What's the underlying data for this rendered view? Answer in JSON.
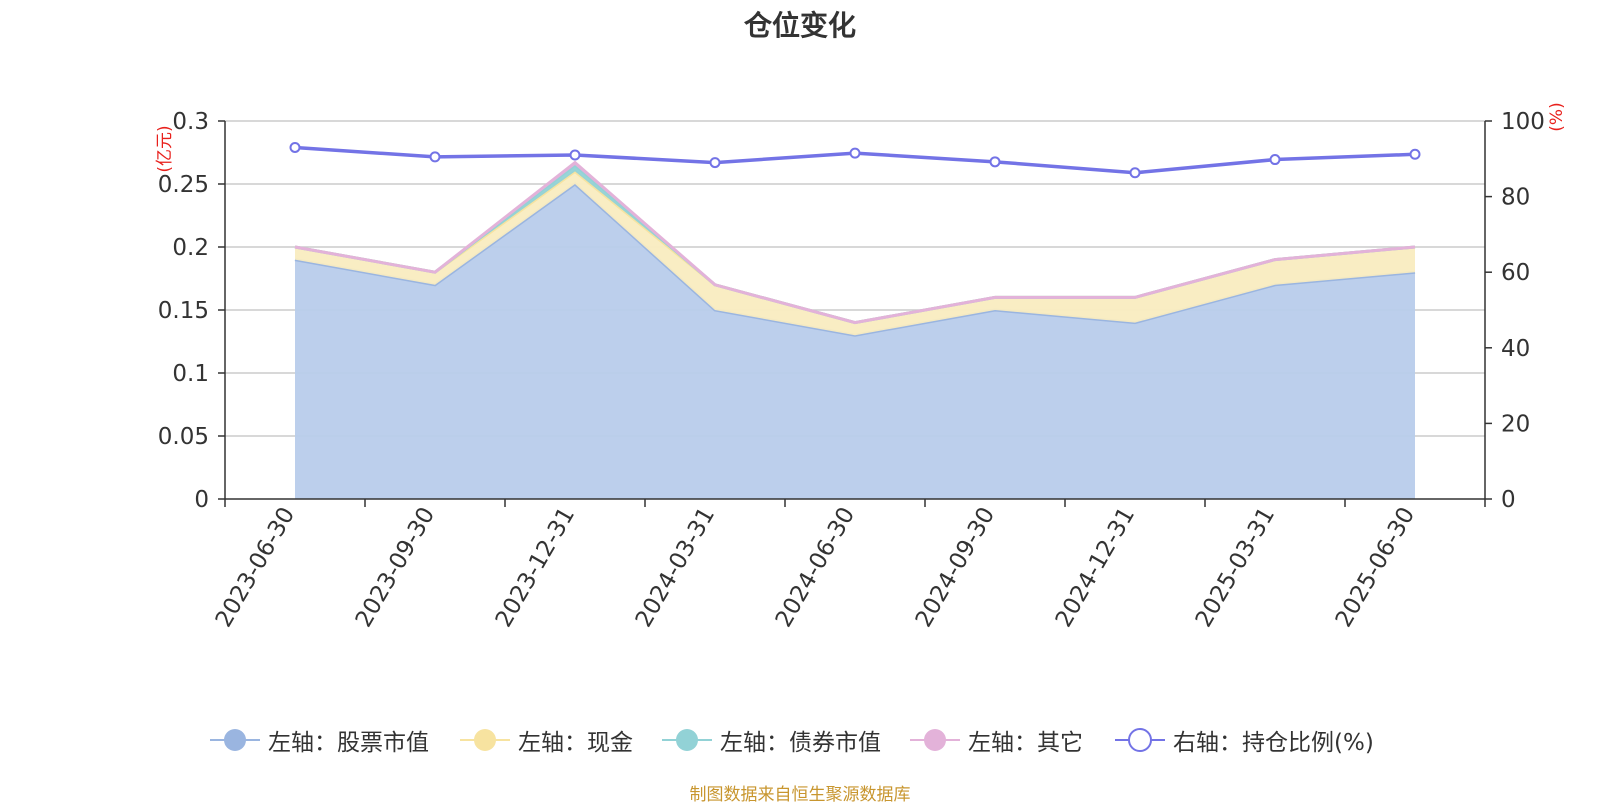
{
  "title": "仓位变化",
  "source_note": "制图数据来自恒生聚源数据库",
  "colors": {
    "stock": "#9ab5e0",
    "stock_fill": "#b8cceb",
    "cash": "#f7e3a0",
    "cash_fill": "#f9ecc0",
    "bond": "#92d2d6",
    "other": "#e3b2d9",
    "position_ratio": "#7373e6",
    "axis_unit": "#e8201c",
    "axis_text": "#333333",
    "grid": "#cccccc",
    "source": "#c8962f"
  },
  "chart_data": {
    "type": "area",
    "title": "仓位变化",
    "x": [
      "2023-06-30",
      "2023-09-30",
      "2023-12-31",
      "2024-03-31",
      "2024-06-30",
      "2024-09-30",
      "2024-12-31",
      "2025-03-31",
      "2025-06-30"
    ],
    "y_left": {
      "label": "(亿元)",
      "range": [
        0,
        0.3
      ],
      "ticks": [
        "0",
        "0.05",
        "0.1",
        "0.15",
        "0.2",
        "0.25",
        "0.3"
      ]
    },
    "y_right": {
      "label": "(%)",
      "range": [
        0,
        100
      ],
      "ticks": [
        "0",
        "20",
        "40",
        "60",
        "80",
        "100"
      ]
    },
    "series": [
      {
        "name": "左轴：股票市值",
        "axis": "left",
        "kind": "stacked-area",
        "color_key": "stock",
        "values": [
          0.19,
          0.17,
          0.25,
          0.15,
          0.13,
          0.15,
          0.14,
          0.17,
          0.18
        ]
      },
      {
        "name": "左轴：现金",
        "axis": "left",
        "kind": "stacked-area",
        "color_key": "cash",
        "values": [
          0.01,
          0.01,
          0.01,
          0.02,
          0.01,
          0.01,
          0.02,
          0.02,
          0.02
        ]
      },
      {
        "name": "左轴：债券市值",
        "axis": "left",
        "kind": "stacked-area",
        "color_key": "bond",
        "values": [
          0,
          0,
          0.005,
          0,
          0,
          0,
          0,
          0,
          0
        ]
      },
      {
        "name": "左轴：其它",
        "axis": "left",
        "kind": "stacked-area",
        "color_key": "other",
        "values": [
          0,
          0,
          0.002,
          0,
          0,
          0,
          0,
          0,
          0
        ]
      },
      {
        "name": "右轴：持仓比例(%)",
        "axis": "right",
        "kind": "line",
        "color_key": "position_ratio",
        "values": [
          93,
          90.5,
          91,
          89,
          91.5,
          89.2,
          86.3,
          89.8,
          91.2
        ]
      }
    ],
    "grid": true,
    "legend_position": "bottom"
  }
}
